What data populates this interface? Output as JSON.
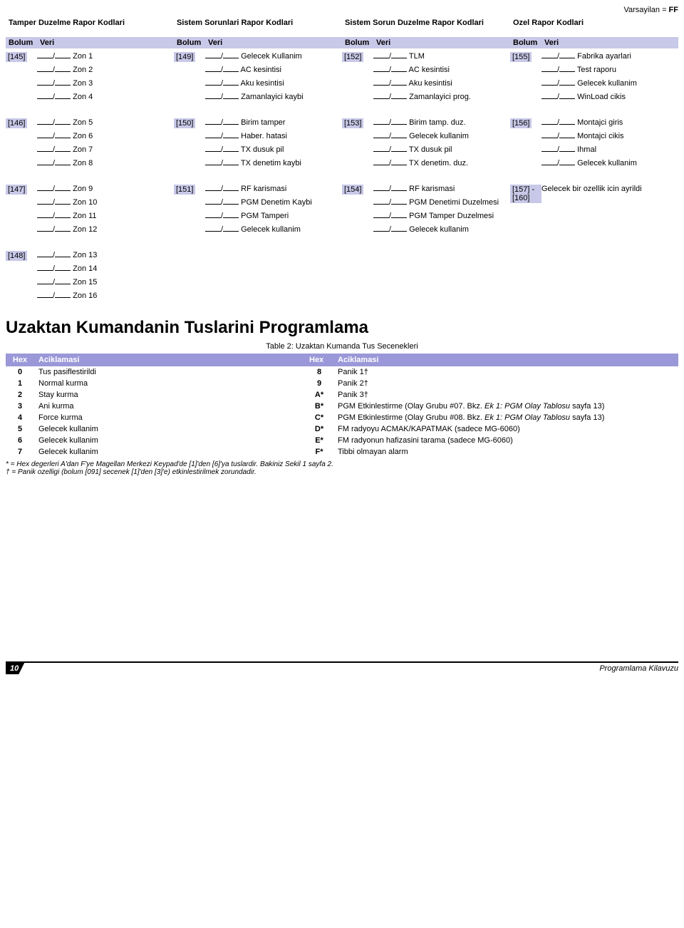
{
  "default_text": "Varsayilan = ",
  "default_val": "FF",
  "groups": [
    {
      "title": "Tamper Duzelme Rapor Kodlari",
      "bolum_label": "Bolum",
      "veri_label": "Veri",
      "sections": [
        {
          "bolum": "[145]",
          "items": [
            "Zon 1",
            "Zon 2",
            "Zon 3",
            "Zon 4"
          ]
        },
        {
          "bolum": "[146]",
          "items": [
            "Zon 5",
            "Zon 6",
            "Zon 7",
            "Zon 8"
          ]
        },
        {
          "bolum": "[147]",
          "items": [
            "Zon 9",
            "Zon 10",
            "Zon 11",
            "Zon 12"
          ]
        },
        {
          "bolum": "[148]",
          "items": [
            "Zon 13",
            "Zon 14",
            "Zon 15",
            "Zon 16"
          ]
        }
      ]
    },
    {
      "title": "Sistem Sorunlari Rapor Kodlari",
      "bolum_label": "Bolum",
      "veri_label": "Veri",
      "sections": [
        {
          "bolum": "[149]",
          "items": [
            "Gelecek Kullanim",
            "AC kesintisi",
            "Aku kesintisi",
            "Zamanlayici kaybi"
          ]
        },
        {
          "bolum": "[150]",
          "items": [
            "Birim tamper",
            "Haber. hatasi",
            "TX dusuk pil",
            "TX denetim kaybi"
          ]
        },
        {
          "bolum": "[151]",
          "items": [
            "RF karismasi",
            "PGM Denetim Kaybi",
            "PGM Tamperi",
            "Gelecek kullanim"
          ]
        }
      ]
    },
    {
      "title": "Sistem Sorun Duzelme Rapor Kodlari",
      "bolum_label": "Bolum",
      "veri_label": "Veri",
      "sections": [
        {
          "bolum": "[152]",
          "items": [
            "TLM",
            "AC kesintisi",
            "Aku kesintisi",
            "Zamanlayici prog."
          ]
        },
        {
          "bolum": "[153]",
          "items": [
            "Birim tamp. duz.",
            "Gelecek kullanim",
            "TX dusuk pil",
            "TX denetim. duz."
          ]
        },
        {
          "bolum": "[154]",
          "items": [
            "RF karismasi",
            "PGM Denetimi Duzelmesi",
            "PGM Tamper Duzelmesi",
            "Gelecek kullanim"
          ]
        }
      ]
    },
    {
      "title": "Ozel Rapor Kodlari",
      "bolum_label": "Bolum",
      "veri_label": "Veri",
      "sections": [
        {
          "bolum": "[155]",
          "items": [
            "Fabrika ayarlari",
            "Test raporu",
            "Gelecek kullanim",
            "WinLoad cikis"
          ]
        },
        {
          "bolum": "[156]",
          "items": [
            "Montajci giris",
            "Montajci cikis",
            "Ihmal",
            "Gelecek kullanim"
          ]
        },
        {
          "bolum": "[157] - [160]",
          "items": [
            "Gelecek bir ozellik icin ayrildi"
          ],
          "nofield": true
        }
      ]
    }
  ],
  "h1": "Uzaktan Kumandanin Tuslarini Programlama",
  "caption": "Table 2: Uzaktan Kumanda Tus Secenekleri",
  "th_hex": "Hex",
  "th_acik": "Aciklamasi",
  "hexrows": [
    {
      "h1": "0",
      "d1": "Tus pasiflestirildi",
      "h2": "8",
      "d2": "Panik 1†"
    },
    {
      "h1": "1",
      "d1": "Normal kurma",
      "h2": "9",
      "d2": "Panik 2†"
    },
    {
      "h1": "2",
      "d1": "Stay kurma",
      "h2": "A*",
      "d2": "Panik 3†"
    },
    {
      "h1": "3",
      "d1": "Ani kurma",
      "h2": "B*",
      "d2": "PGM Etkinlestirme (Olay Grubu #07. Bkz. ",
      "d2i": "Ek 1: PGM Olay Tablosu",
      "d2t": " sayfa 13)"
    },
    {
      "h1": "4",
      "d1": "Force kurma",
      "h2": "C*",
      "d2": "PGM Etkinlestirme (Olay Grubu #08. Bkz. ",
      "d2i": "Ek 1: PGM Olay Tablosu",
      "d2t": " sayfa 13)"
    },
    {
      "h1": "5",
      "d1": "Gelecek kullanim",
      "h2": "D*",
      "d2": "FM radyoyu ACMAK/KAPATMAK (sadece MG-6060)"
    },
    {
      "h1": "6",
      "d1": "Gelecek kullanim",
      "h2": "E*",
      "d2": "FM radyonun hafizasini tarama (sadece MG-6060)"
    },
    {
      "h1": "7",
      "d1": "Gelecek kullanim",
      "h2": "F*",
      "d2": "Tibbi olmayan alarm"
    }
  ],
  "footnote_star": "* = Hex degerleri A'dan F'ye Magellan Merkezi Keypad'de [1]'den [6]'ya tuslardir. Bakiniz Sekil 1 sayfa 2.",
  "footnote_dagger": "† = Panik ozelligi (bolum [091] secenek [1]'den [3]'e) etkinlestirilmek zorundadir.",
  "page_num": "10",
  "footer_right": "Programlama Kilavuzu"
}
